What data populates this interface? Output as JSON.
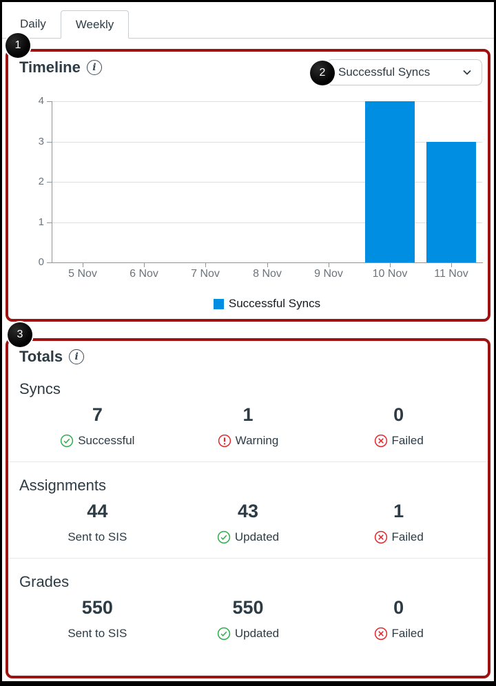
{
  "tabs": [
    {
      "label": "Daily",
      "active": false
    },
    {
      "label": "Weekly",
      "active": true
    }
  ],
  "timeline_panel": {
    "callout": "1",
    "title": "Timeline",
    "dropdown": {
      "callout": "2",
      "selected": "Successful Syncs"
    },
    "legend": "Successful Syncs"
  },
  "chart_data": {
    "type": "bar",
    "title": "Timeline",
    "categories": [
      "5 Nov",
      "6 Nov",
      "7 Nov",
      "8 Nov",
      "9 Nov",
      "10 Nov",
      "11 Nov"
    ],
    "series": [
      {
        "name": "Successful Syncs",
        "values": [
          0,
          0,
          0,
          0,
          0,
          4,
          3
        ]
      }
    ],
    "xlabel": "",
    "ylabel": "",
    "ylim": [
      0,
      4
    ],
    "yticks": [
      0,
      1,
      2,
      3,
      4
    ],
    "grid": true,
    "legend_position": "bottom",
    "bar_color": "#008EE2"
  },
  "totals_panel": {
    "callout": "3",
    "title": "Totals",
    "sections": [
      {
        "title": "Syncs",
        "stats": [
          {
            "value": "7",
            "label": "Successful",
            "icon": "check-circle"
          },
          {
            "value": "1",
            "label": "Warning",
            "icon": "warning-circle"
          },
          {
            "value": "0",
            "label": "Failed",
            "icon": "x-circle"
          }
        ]
      },
      {
        "title": "Assignments",
        "stats": [
          {
            "value": "44",
            "label": "Sent to SIS",
            "icon": "none"
          },
          {
            "value": "43",
            "label": "Updated",
            "icon": "check-circle"
          },
          {
            "value": "1",
            "label": "Failed",
            "icon": "x-circle"
          }
        ]
      },
      {
        "title": "Grades",
        "stats": [
          {
            "value": "550",
            "label": "Sent to SIS",
            "icon": "none"
          },
          {
            "value": "550",
            "label": "Updated",
            "icon": "check-circle"
          },
          {
            "value": "0",
            "label": "Failed",
            "icon": "x-circle"
          }
        ]
      }
    ]
  },
  "colors": {
    "accent_blue": "#008EE2",
    "panel_border": "#9E1212",
    "success_green": "#2DAE4A",
    "error_red": "#E62429",
    "text": "#2D3B45",
    "axis_gray": "#8B959D",
    "grid_gray": "#DCDEE1"
  }
}
